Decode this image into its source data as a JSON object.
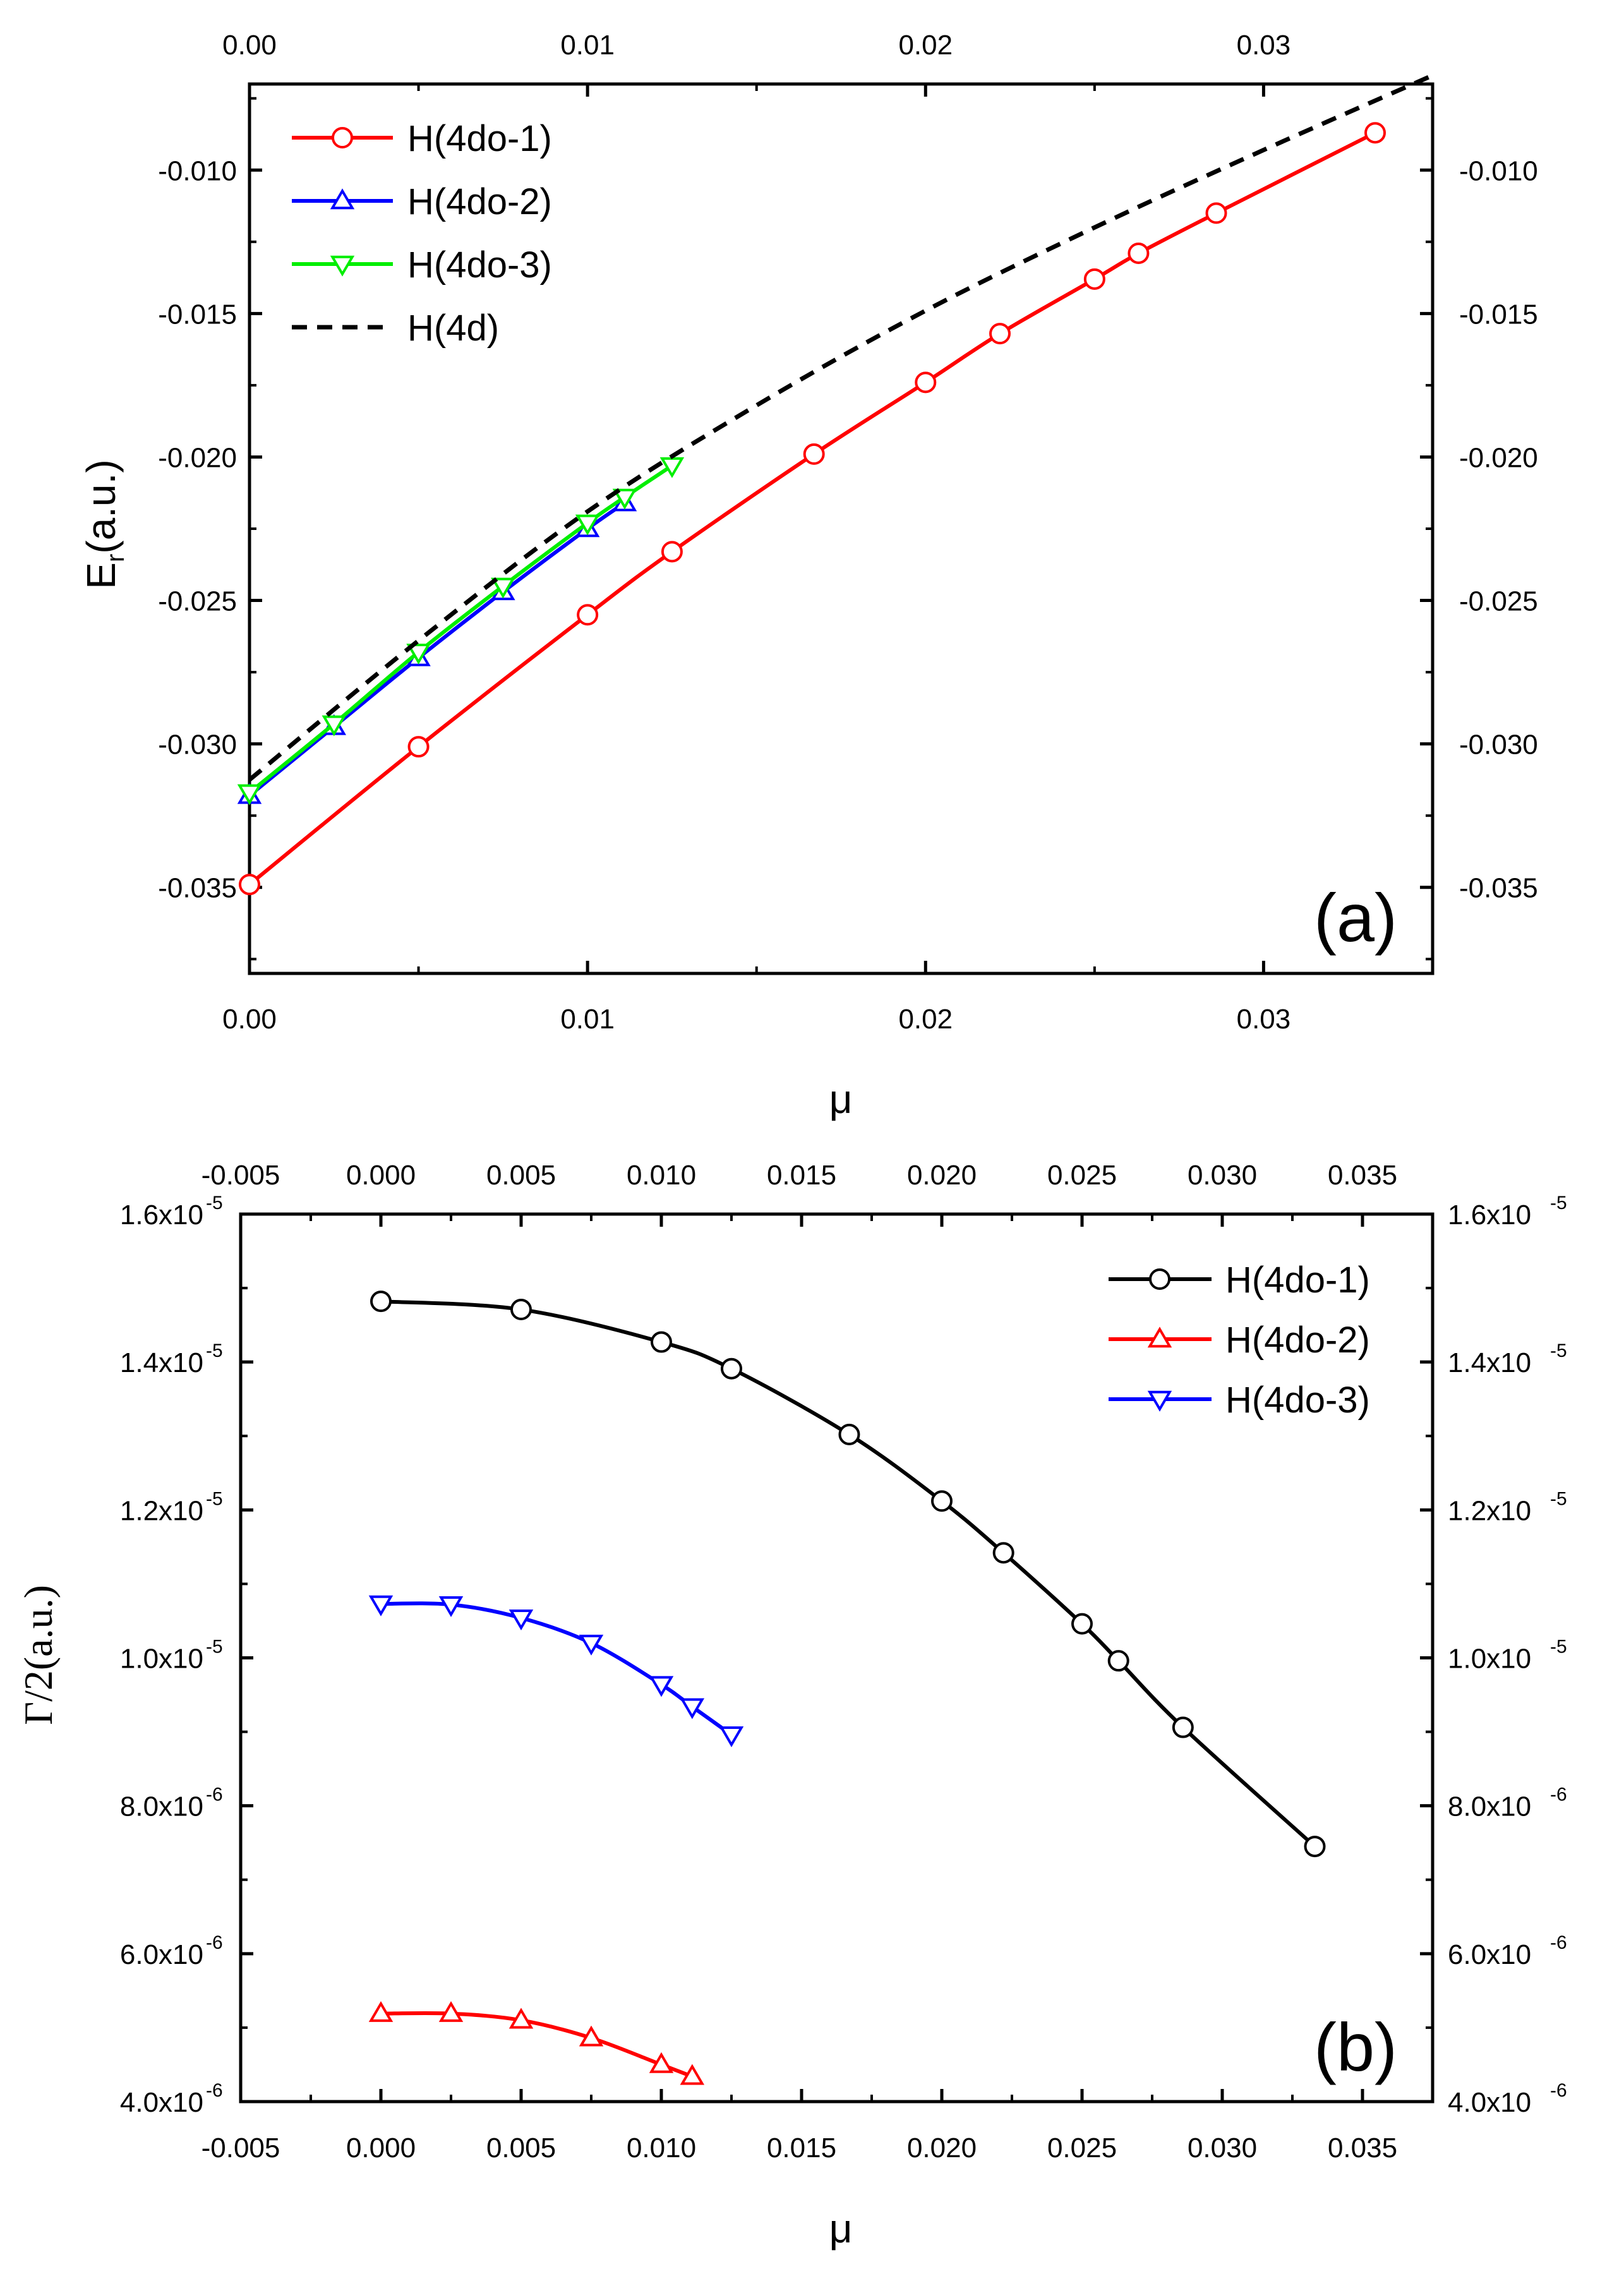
{
  "chart_data": [
    {
      "type": "line",
      "panel_label": "(a)",
      "xlabel": "μ",
      "ylabel_main": "E",
      "ylabel_sub": "r",
      "ylabel_unit": "(a.u.)",
      "xlim": [
        0,
        0.035
      ],
      "ylim": [
        -0.038,
        -0.007
      ],
      "xticks": [
        0.0,
        0.01,
        0.02,
        0.03
      ],
      "xtick_labels": [
        "0.00",
        "0.01",
        "0.02",
        "0.03"
      ],
      "yticks": [
        -0.035,
        -0.03,
        -0.025,
        -0.02,
        -0.015,
        -0.01
      ],
      "ytick_labels": [
        "-0.035",
        "-0.030",
        "-0.025",
        "-0.020",
        "-0.015",
        "-0.010"
      ],
      "legend_position": "top-left",
      "series": [
        {
          "name": "H(4do-1)",
          "color": "#ff0000",
          "marker": "circle",
          "x": [
            0,
            0.005,
            0.01,
            0.0125,
            0.0167,
            0.02,
            0.0222,
            0.025,
            0.0263,
            0.0286,
            0.0333
          ],
          "y": [
            -0.0349,
            -0.0301,
            -0.0255,
            -0.0233,
            -0.0199,
            -0.0174,
            -0.0157,
            -0.0138,
            -0.0129,
            -0.0115,
            -0.0087
          ]
        },
        {
          "name": "H(4do-2)",
          "color": "#0000ff",
          "marker": "triangle-up",
          "x": [
            0,
            0.0025,
            0.005,
            0.0075,
            0.01,
            0.0111
          ],
          "y": [
            -0.0318,
            -0.0294,
            -0.027,
            -0.0247,
            -0.0225,
            -0.0216
          ]
        },
        {
          "name": "H(4do-3)",
          "color": "#00ee00",
          "marker": "triangle-down",
          "x": [
            0,
            0.0025,
            0.005,
            0.0075,
            0.01,
            0.0111,
            0.0125
          ],
          "y": [
            -0.0317,
            -0.0293,
            -0.0268,
            -0.0245,
            -0.0223,
            -0.0214,
            -0.0203
          ]
        },
        {
          "name": "H(4d)",
          "color": "#000000",
          "marker": "none",
          "dashed": true,
          "x": [
            0,
            0.005,
            0.01,
            0.015,
            0.02,
            0.025,
            0.03,
            0.035
          ],
          "y": [
            -0.03125,
            -0.0264,
            -0.0219,
            -0.0182,
            -0.0149,
            -0.012,
            -0.0093,
            -0.0067
          ]
        }
      ]
    },
    {
      "type": "line",
      "panel_label": "(b)",
      "xlabel": "μ",
      "ylabel": "Γ/2(a.u.)",
      "xlim": [
        -0.005,
        0.0375
      ],
      "ylim": [
        4e-06,
        1.6e-05
      ],
      "xticks": [
        -0.005,
        0.0,
        0.005,
        0.01,
        0.015,
        0.02,
        0.025,
        0.03,
        0.035
      ],
      "xtick_labels": [
        "-0.005",
        "0.000",
        "0.005",
        "0.010",
        "0.015",
        "0.020",
        "0.025",
        "0.030",
        "0.035"
      ],
      "yticks": [
        4e-06,
        6e-06,
        8e-06,
        1e-05,
        1.2e-05,
        1.4e-05,
        1.6e-05
      ],
      "ytick_mantissas": [
        "4.0x10",
        "6.0x10",
        "8.0x10",
        "1.0x10",
        "1.2x10",
        "1.4x10",
        "1.6x10"
      ],
      "ytick_exponents": [
        "-6",
        "-6",
        "-6",
        "-5",
        "-5",
        "-5",
        "-5"
      ],
      "legend_position": "top-right",
      "series": [
        {
          "name": "H(4do-1)",
          "color": "#000000",
          "marker": "circle",
          "x": [
            0,
            0.005,
            0.01,
            0.0125,
            0.0167,
            0.02,
            0.0222,
            0.025,
            0.0263,
            0.0286,
            0.0333
          ],
          "y": [
            1.482e-05,
            1.471e-05,
            1.427e-05,
            1.391e-05,
            1.302e-05,
            1.212e-05,
            1.142e-05,
            1.046e-05,
            9.96e-06,
            9.06e-06,
            7.45e-06
          ]
        },
        {
          "name": "H(4do-2)",
          "color": "#ff0000",
          "marker": "triangle-up",
          "x": [
            0,
            0.0025,
            0.005,
            0.0075,
            0.01,
            0.0111
          ],
          "y": [
            5.19e-06,
            5.19e-06,
            5.1e-06,
            4.86e-06,
            4.5e-06,
            4.34e-06
          ]
        },
        {
          "name": "H(4do-3)",
          "color": "#0000ff",
          "marker": "triangle-down",
          "x": [
            0,
            0.0025,
            0.005,
            0.0075,
            0.01,
            0.0111,
            0.0125
          ],
          "y": [
            1.073e-05,
            1.072e-05,
            1.054e-05,
            1.02e-05,
            9.64e-06,
            9.34e-06,
            8.96e-06
          ]
        }
      ]
    }
  ]
}
